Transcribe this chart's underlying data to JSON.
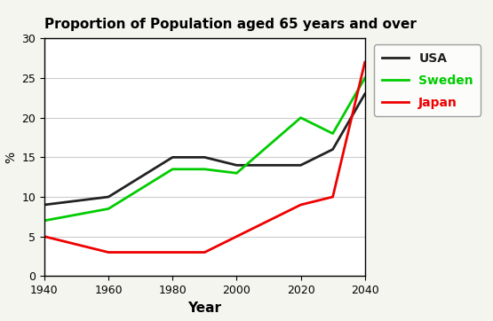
{
  "title": "Proportion of Population aged 65 years and over",
  "xlabel": "Year",
  "ylabel": "%",
  "years": [
    1940,
    1960,
    1980,
    1990,
    2000,
    2020,
    2030,
    2040
  ],
  "usa": [
    9,
    10,
    15,
    15,
    14,
    14,
    16,
    23
  ],
  "sweden": [
    7,
    8.5,
    13.5,
    13.5,
    13,
    20,
    18,
    25
  ],
  "japan": [
    5,
    3,
    3,
    3,
    5,
    9,
    10,
    27
  ],
  "usa_color": "#222222",
  "sweden_color": "#00cc00",
  "japan_color": "#ee0000",
  "ylim": [
    0,
    30
  ],
  "xlim": [
    1940,
    2040
  ],
  "xticks": [
    1940,
    1960,
    1980,
    2000,
    2020,
    2040
  ],
  "yticks": [
    0,
    5,
    10,
    15,
    20,
    25,
    30
  ],
  "fig_background": "#f5f5f0",
  "plot_bg": "#ffffff",
  "legend_labels": [
    "USA",
    "Sweden",
    "Japan"
  ],
  "title_fontsize": 11,
  "xlabel_fontsize": 11,
  "ylabel_fontsize": 10,
  "tick_fontsize": 9,
  "legend_fontsize": 10,
  "linewidth": 2.0
}
